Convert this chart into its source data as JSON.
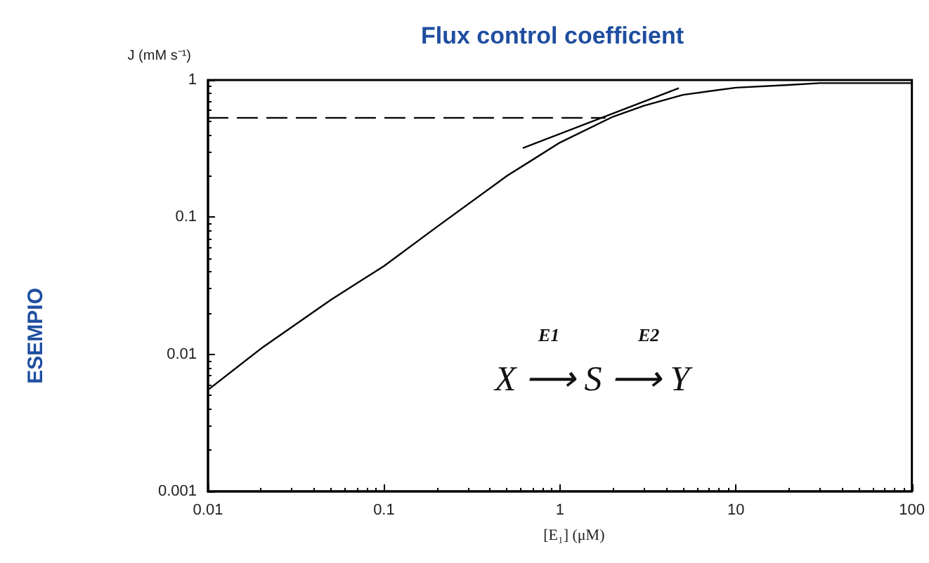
{
  "chart_data": {
    "type": "line",
    "title": "Flux control coefficient",
    "xlabel": "[E₁] (μM)",
    "ylabel": "J (mM s⁻¹)",
    "log": "xy",
    "xlim": [
      0.01,
      100
    ],
    "ylim": [
      0.001,
      1
    ],
    "xticks": [
      0.01,
      0.1,
      1,
      10,
      100
    ],
    "yticks": [
      0.001,
      0.01,
      0.1,
      1
    ],
    "grid": false,
    "marker": "none",
    "annotations": [
      "ESEMPIO",
      "E1",
      "E2",
      "X ⟶ S ⟶ Y"
    ],
    "series": [
      {
        "color": "#000000",
        "line_style": "solid",
        "x": [
          0.01,
          0.02,
          0.05,
          0.1,
          0.2,
          0.5,
          1,
          2,
          3,
          5,
          10,
          20,
          30,
          50,
          100
        ],
        "values": [
          0.0055,
          0.011,
          0.025,
          0.044,
          0.085,
          0.2,
          0.35,
          0.54,
          0.65,
          0.78,
          0.88,
          0.92,
          0.95,
          0.95,
          0.95
        ]
      },
      {
        "color": "#000000",
        "line_style": "dashed",
        "x": [
          0.01,
          1.8
        ],
        "values": [
          0.53,
          0.53
        ]
      },
      {
        "color": "#000000",
        "line_style": "solid",
        "x": [
          0.62,
          4.7
        ],
        "values": [
          0.32,
          0.87
        ]
      }
    ]
  }
}
